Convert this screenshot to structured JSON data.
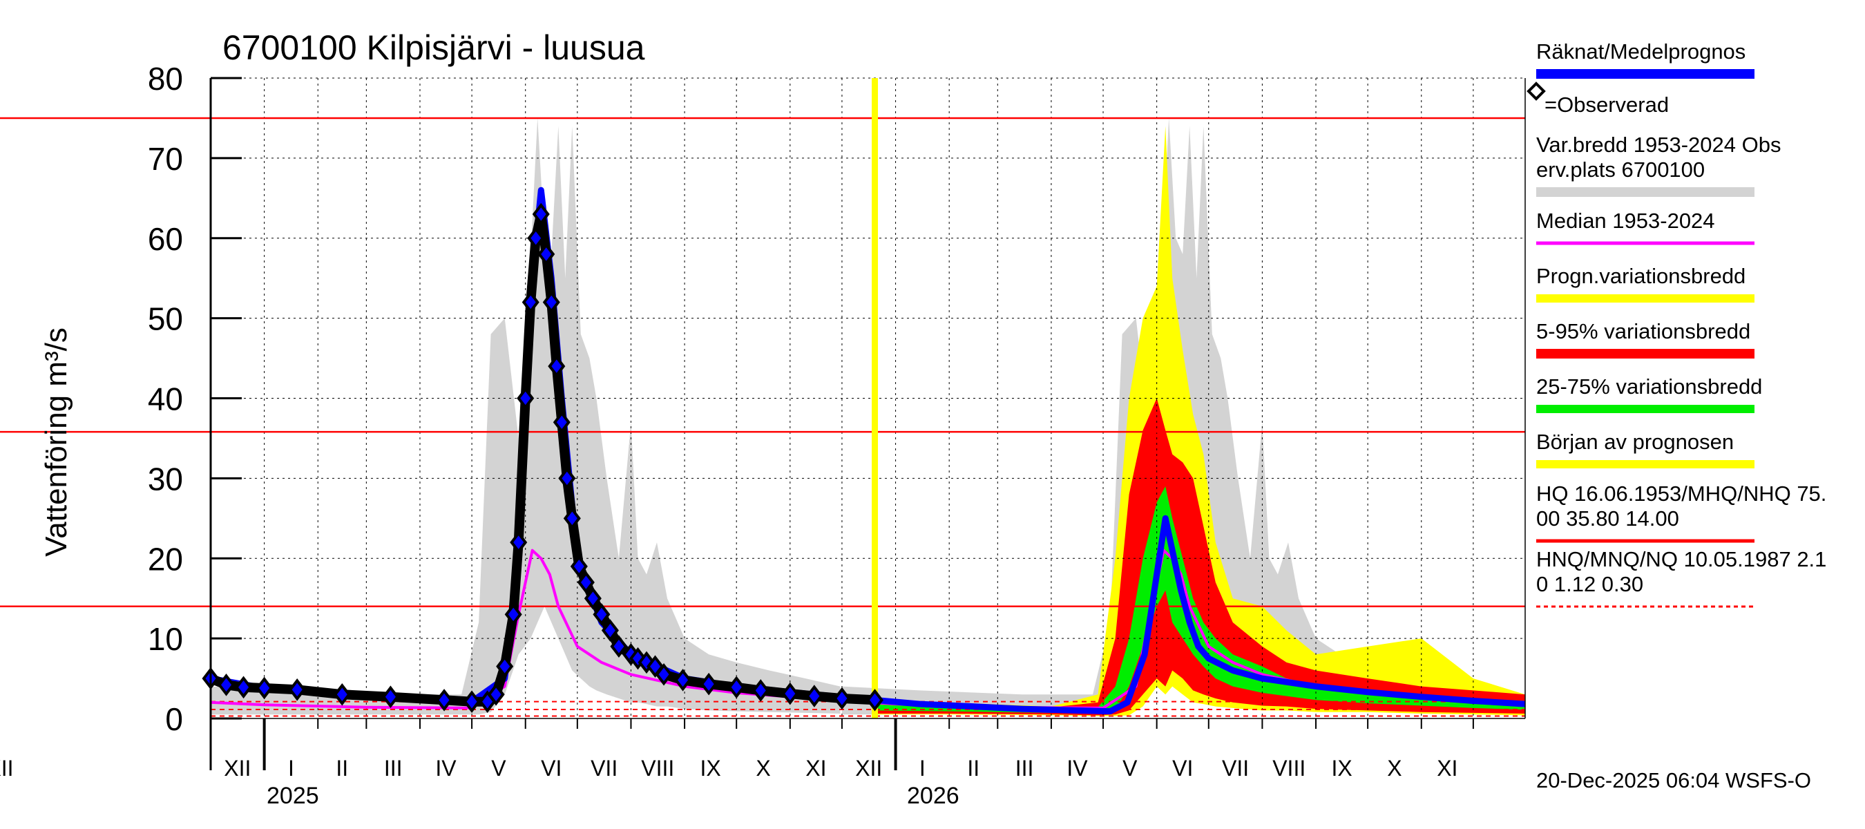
{
  "chart_data": {
    "type": "line",
    "title": "6700100 Kilpisjärvi - luusua",
    "ylabel": "Vattenföring m³/s",
    "xlabel": "",
    "ylim": [
      0,
      80
    ],
    "y_ticks": [
      "0",
      "10",
      "20",
      "30",
      "40",
      "50",
      "60",
      "70",
      "80"
    ],
    "x_range": [
      "2024-12-01",
      "2026-12-31"
    ],
    "month_labels": [
      "XII",
      "I",
      "II",
      "III",
      "IV",
      "V",
      "VI",
      "VII",
      "VIII",
      "IX",
      "X",
      "XI",
      "XII",
      "I",
      "II",
      "III",
      "IV",
      "V",
      "VI",
      "VII",
      "VIII",
      "IX",
      "X",
      "XI",
      "XII"
    ],
    "year_labels": [
      "2025",
      "2026"
    ],
    "grid": true,
    "legend_position": "right",
    "forecast_start": "2025-12-20",
    "reference_lines": [
      {
        "name": "HQ",
        "value": 75.0
      },
      {
        "name": "MHQ",
        "value": 35.8
      },
      {
        "name": "NHQ",
        "value": 14.0
      },
      {
        "name": "HNQ",
        "value": 2.1
      },
      {
        "name": "MNQ",
        "value": 1.12
      },
      {
        "name": "NQ",
        "value": 0.3
      }
    ],
    "series": [
      {
        "name": "=Observerad",
        "x": [
          "2024-12-01",
          "2024-12-10",
          "2024-12-20",
          "2025-01-01",
          "2025-01-20",
          "2025-02-15",
          "2025-03-15",
          "2025-04-15",
          "2025-05-01",
          "2025-05-10",
          "2025-05-15",
          "2025-05-20",
          "2025-05-25",
          "2025-05-28",
          "2025-06-01",
          "2025-06-04",
          "2025-06-07",
          "2025-06-10",
          "2025-06-13",
          "2025-06-16",
          "2025-06-19",
          "2025-06-22",
          "2025-06-25",
          "2025-06-28",
          "2025-07-02",
          "2025-07-06",
          "2025-07-10",
          "2025-07-15",
          "2025-07-20",
          "2025-07-25",
          "2025-08-01",
          "2025-08-05",
          "2025-08-10",
          "2025-08-15",
          "2025-08-20",
          "2025-08-31",
          "2025-09-15",
          "2025-10-01",
          "2025-10-15",
          "2025-11-01",
          "2025-11-15",
          "2025-12-01",
          "2025-12-20"
        ],
        "values": [
          5.0,
          4.2,
          3.9,
          3.8,
          3.6,
          3.0,
          2.7,
          2.3,
          2.1,
          2.1,
          3.0,
          6.5,
          13,
          22,
          40,
          52,
          60,
          63,
          58,
          52,
          44,
          37,
          30,
          25,
          19,
          17,
          15,
          13,
          11,
          9,
          8,
          7.5,
          7,
          6.5,
          5.5,
          4.8,
          4.3,
          3.9,
          3.5,
          3.1,
          2.8,
          2.5,
          2.3
        ]
      },
      {
        "name": "Räknat/Medelprognos",
        "x": [
          "2024-12-01",
          "2025-01-01",
          "2025-03-01",
          "2025-05-01",
          "2025-05-20",
          "2025-05-28",
          "2025-06-05",
          "2025-06-10",
          "2025-06-16",
          "2025-06-22",
          "2025-07-01",
          "2025-07-15",
          "2025-08-01",
          "2025-09-01",
          "2025-10-01",
          "2025-11-01",
          "2025-12-20",
          "2026-01-15",
          "2026-02-15",
          "2026-03-15",
          "2026-04-15",
          "2026-05-05",
          "2026-05-15",
          "2026-05-25",
          "2026-06-01",
          "2026-06-06",
          "2026-06-10",
          "2026-06-15",
          "2026-06-20",
          "2026-06-25",
          "2026-07-01",
          "2026-07-15",
          "2026-08-01",
          "2026-09-01",
          "2026-10-01",
          "2026-11-01",
          "2026-12-01",
          "2026-12-31"
        ],
        "values": [
          5.0,
          3.8,
          2.8,
          2.1,
          5,
          20,
          55,
          66,
          55,
          40,
          20,
          12,
          8,
          5,
          4,
          3.3,
          2.3,
          1.8,
          1.5,
          1.2,
          1.0,
          0.9,
          2,
          8,
          18,
          25,
          21,
          16,
          12,
          9,
          7.5,
          6,
          5,
          4,
          3.3,
          2.7,
          2.2,
          1.8
        ]
      },
      {
        "name": "Median 1953-2024",
        "x": [
          "2024-12-01",
          "2025-01-01",
          "2025-03-01",
          "2025-05-01",
          "2025-05-20",
          "2025-05-28",
          "2025-06-05",
          "2025-06-10",
          "2025-06-15",
          "2025-06-20",
          "2025-07-01",
          "2025-07-15",
          "2025-08-01",
          "2025-09-01",
          "2025-10-01",
          "2025-11-01",
          "2025-12-01",
          "2026-01-01",
          "2026-03-01",
          "2026-05-01",
          "2026-05-20",
          "2026-05-28",
          "2026-06-05",
          "2026-06-10",
          "2026-06-15",
          "2026-06-20",
          "2026-07-01",
          "2026-07-15",
          "2026-08-01",
          "2026-09-01",
          "2026-10-01",
          "2026-11-01",
          "2026-12-01",
          "2026-12-31"
        ],
        "values": [
          2.0,
          1.7,
          1.4,
          1.3,
          4,
          13,
          21,
          20,
          18,
          14,
          9,
          7,
          5.5,
          4,
          3.2,
          2.7,
          2.2,
          1.8,
          1.4,
          1.3,
          4,
          13,
          21,
          20,
          18,
          14,
          9,
          7,
          5.5,
          4,
          3.2,
          2.7,
          2.2,
          2.0
        ]
      }
    ],
    "bands": [
      {
        "name": "Var.bredd 1953-2024 Obs erv.plats 6700100",
        "color": "#d3d3d3"
      },
      {
        "name": "Progn.variationsbredd",
        "color": "#ffff00"
      },
      {
        "name": "5-95% variationsbredd",
        "color": "#ff0000"
      },
      {
        "name": "25-75% variationsbredd",
        "color": "#00ee00"
      }
    ]
  },
  "legend": {
    "items": [
      {
        "label": "Räknat/Medelprognos",
        "color": "#0000ff"
      },
      {
        "label": "=Observerad"
      },
      {
        "label": "Var.bredd 1953-2024   Obs",
        "label2": "erv.plats 6700100",
        "color": "#d3d3d3"
      },
      {
        "label": "Median 1953-2024",
        "color": "#ff00ff"
      },
      {
        "label": "Progn.variationsbredd",
        "color": "#ffff00"
      },
      {
        "label": "5-95% variationsbredd",
        "color": "#ff0000"
      },
      {
        "label": "25-75% variationsbredd",
        "color": "#00ee00"
      },
      {
        "label": "Början av prognosen",
        "color": "#ffff00"
      },
      {
        "label": "HQ 16.06.1953/MHQ/NHQ 75.",
        "label2": "00 35.80 14.00",
        "color": "#ff0000"
      },
      {
        "label": "HNQ/MNQ/NQ 10.05.1987 2.1",
        "label2": "0 1.12 0.30",
        "color": "#ff0000"
      }
    ]
  },
  "footer": {
    "timestamp": "20-Dec-2025 06:04 WSFS-O"
  }
}
